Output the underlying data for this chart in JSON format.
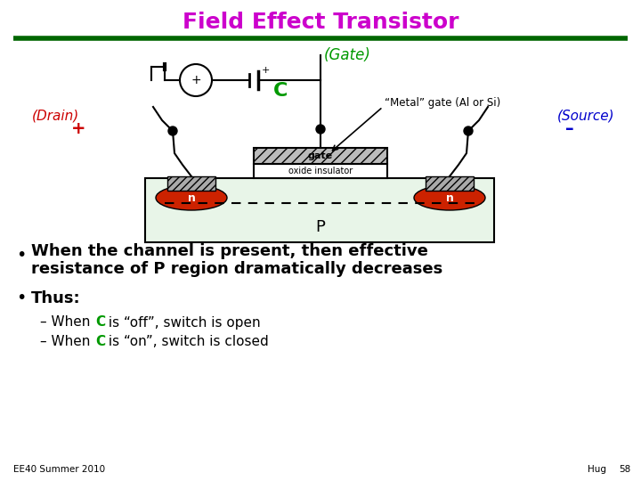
{
  "title": "Field Effect Transistor",
  "title_color": "#cc00cc",
  "title_fontsize": 18,
  "green_line_color": "#006600",
  "gate_label": "(Gate)",
  "gate_label_color": "#009900",
  "drain_label": "(Drain)",
  "drain_plus": "+",
  "drain_color": "#cc0000",
  "source_label": "(Source)",
  "source_minus": "–",
  "source_color": "#0000cc",
  "capacitor_label": "C",
  "capacitor_color": "#009900",
  "metal_gate_text": "“Metal” gate (Al or Si)",
  "gate_region_label": "gate",
  "oxide_label": "oxide insulator",
  "p_region_label": "P",
  "n_left_label": "n",
  "n_right_label": "n",
  "bullet1_line1": "When the channel is present, then effective",
  "bullet1_line2": "resistance of P region dramatically decreases",
  "bullet2": "Thus:",
  "sub1_prefix": "– When ",
  "sub1c": "C",
  "sub1_rest": " is “off”, switch is open",
  "sub2_prefix": "– When ",
  "sub2c": "C",
  "sub2_rest": " is “on”, switch is closed",
  "footer_left": "EE40 Summer 2010",
  "footer_right_name": "Hug",
  "footer_right_num": "58",
  "bg_color": "#ffffff",
  "p_region_color": "#e8f5e8",
  "n_region_color": "#cc2200",
  "oxide_color": "#ffffff",
  "pad_color": "#aaaaaa"
}
